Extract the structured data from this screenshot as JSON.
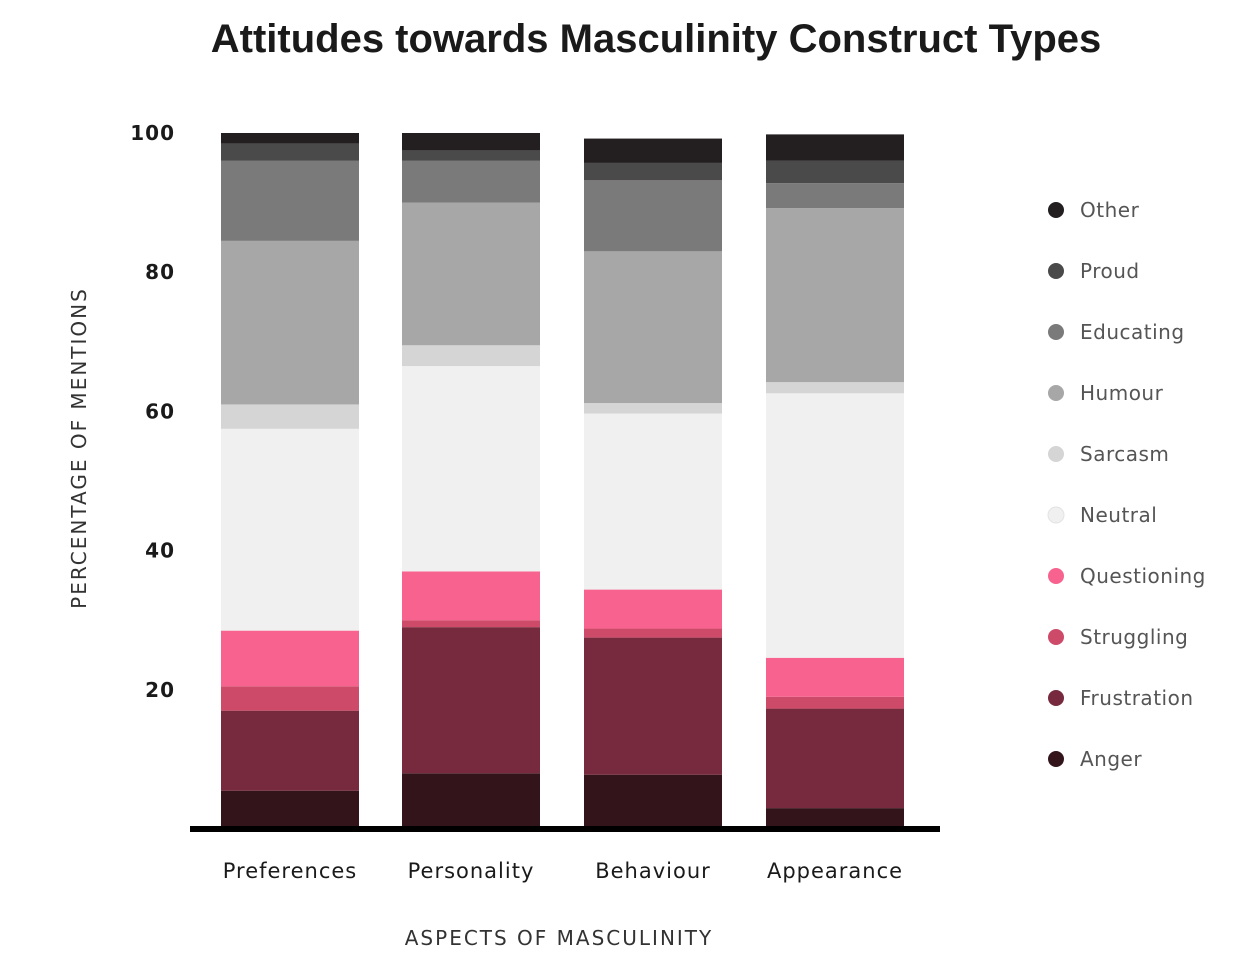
{
  "chart_data": {
    "type": "bar",
    "stacked": true,
    "title": "Attitudes towards Masculinity Construct Types",
    "xlabel": "ASPECTS OF MASCULINITY",
    "ylabel": "PERCENTAGE OF MENTIONS",
    "ylim": [
      0,
      100
    ],
    "yticks": [
      20,
      40,
      60,
      80,
      100
    ],
    "categories": [
      "Preferences",
      "Personality",
      "Behaviour",
      "Appearance"
    ],
    "legend_position": "right",
    "series": [
      {
        "name": "Anger",
        "color": "#33141b",
        "values": [
          5.5,
          8,
          7.8,
          3
        ]
      },
      {
        "name": "Frustration",
        "color": "#772a3e",
        "values": [
          11.5,
          21,
          19.7,
          14.3
        ]
      },
      {
        "name": "Struggling",
        "color": "#cd4b68",
        "values": [
          3.5,
          1,
          1.3,
          1.7
        ]
      },
      {
        "name": "Questioning",
        "color": "#f8628f",
        "values": [
          8,
          7,
          5.6,
          5.6
        ]
      },
      {
        "name": "Neutral",
        "color": "#f0f0f0",
        "values": [
          29,
          29.5,
          25.3,
          38
        ]
      },
      {
        "name": "Sarcasm",
        "color": "#d5d5d5",
        "values": [
          3.5,
          3,
          1.5,
          1.6
        ]
      },
      {
        "name": "Humour",
        "color": "#a7a7a7",
        "values": [
          23.5,
          20.5,
          21.8,
          25
        ]
      },
      {
        "name": "Educating",
        "color": "#7b7a7a",
        "values": [
          11.5,
          6,
          10.2,
          3.6
        ]
      },
      {
        "name": "Proud",
        "color": "#4b4a4a",
        "values": [
          2.5,
          1.5,
          2.5,
          3.2
        ]
      },
      {
        "name": "Other",
        "color": "#231f20",
        "values": [
          1.5,
          2.5,
          3.5,
          3.8
        ]
      }
    ]
  }
}
